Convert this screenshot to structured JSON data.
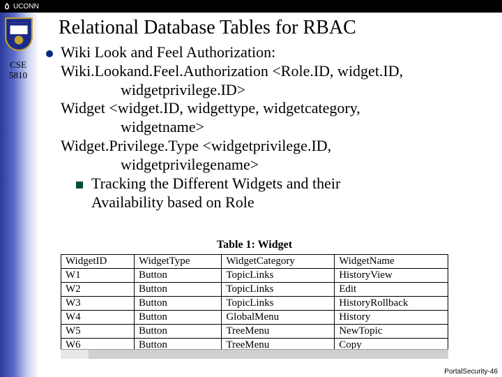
{
  "brand": "UCONN",
  "course_line1": "CSE",
  "course_line2": "5810",
  "title": "Relational Database Tables for RBAC",
  "lines": {
    "l1": "Wiki Look and Feel Authorization:",
    "l2": "Wiki.Lookand.Feel.Authorization <Role.ID, widget.ID,",
    "l3": "widgetprivilege.ID>",
    "l4": "Widget <widget.ID, widgettype, widgetcategory,",
    "l5": "widgetname>",
    "l6": "Widget.Privilege.Type <widgetprivilege.ID,",
    "l7": "widgetprivilegename>",
    "sub1": "Tracking the Different Widgets and their",
    "sub2": "Availability based on Role"
  },
  "table": {
    "caption": "Table 1: Widget",
    "headers": [
      "WidgetID",
      "WidgetType",
      "WidgetCategory",
      "WidgetName"
    ],
    "rows": [
      [
        "W1",
        "Button",
        "TopicLinks",
        "HistoryView"
      ],
      [
        "W2",
        "Button",
        "TopicLinks",
        "Edit"
      ],
      [
        "W3",
        "Button",
        "TopicLinks",
        "HistoryRollback"
      ],
      [
        "W4",
        "Button",
        "GlobalMenu",
        "History"
      ],
      [
        "W5",
        "Button",
        "TreeMenu",
        "NewTopic"
      ],
      [
        "W6",
        "Button",
        "TreeMenu",
        "Copy"
      ]
    ]
  },
  "footer": "PortalSecurity-46",
  "colors": {
    "bullet": "#002a80",
    "subbox": "#005030"
  }
}
